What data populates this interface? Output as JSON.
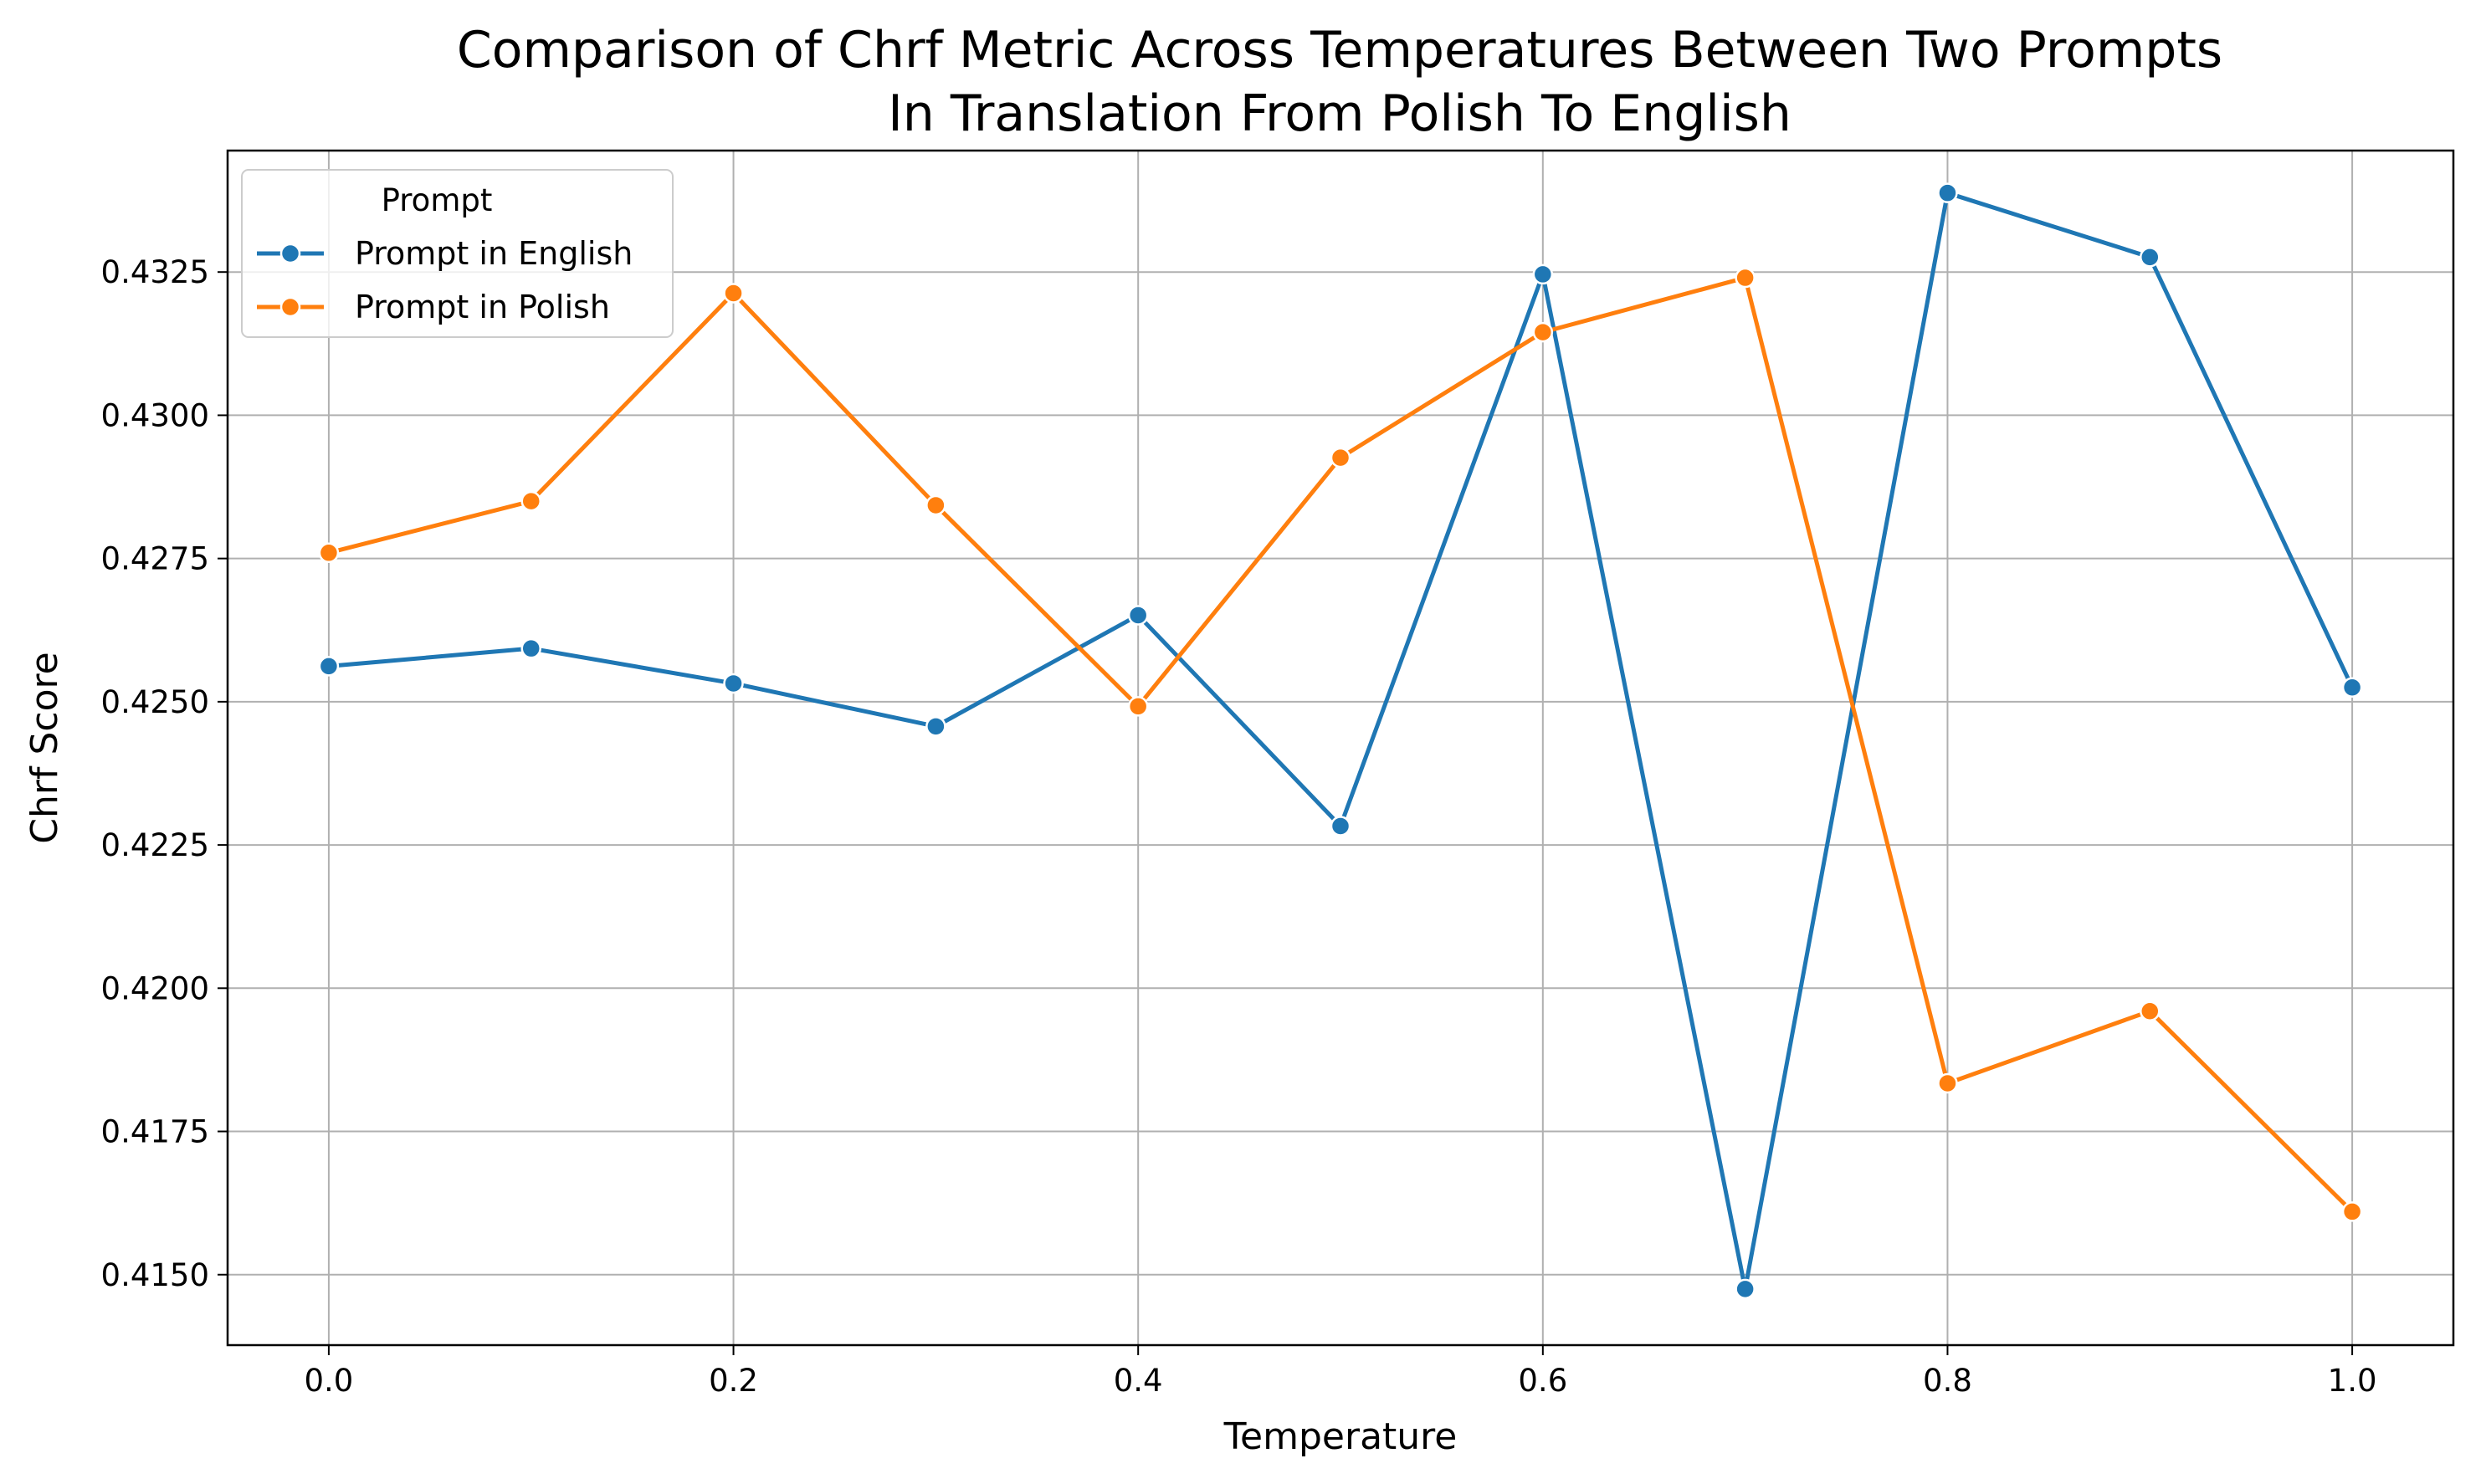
{
  "chart_data": {
    "type": "line",
    "title": [
      "Comparison of Chrf Metric Across Temperatures Between Two Prompts",
      "In Translation From Polish To English"
    ],
    "xlabel": "Temperature",
    "ylabel": "Chrf Score",
    "x": [
      0.0,
      0.1,
      0.2,
      0.3,
      0.4,
      0.5,
      0.6,
      0.7,
      0.8,
      0.9,
      1.0
    ],
    "xticks": [
      "0.0",
      "0.2",
      "0.4",
      "0.6",
      "0.8",
      "1.0"
    ],
    "yticks": [
      "0.4150",
      "0.4175",
      "0.4200",
      "0.4225",
      "0.4250",
      "0.4275",
      "0.4300",
      "0.4325"
    ],
    "xlim": [
      -0.05,
      1.05
    ],
    "ylim": [
      0.41377,
      0.43462
    ],
    "grid": true,
    "legend": {
      "title": "Prompt",
      "placement": "top-left"
    },
    "series": [
      {
        "name": "Prompt in English",
        "color": "#1f77b4",
        "values": [
          0.42562,
          0.42593,
          0.42532,
          0.42457,
          0.42651,
          0.42283,
          0.43246,
          0.41475,
          0.43388,
          0.43276,
          0.42525
        ]
      },
      {
        "name": "Prompt in Polish",
        "color": "#ff7f0e",
        "values": [
          0.4276,
          0.4285,
          0.43213,
          0.42843,
          0.42492,
          0.42926,
          0.43145,
          0.4324,
          0.41834,
          0.4196,
          0.4161
        ]
      }
    ]
  }
}
